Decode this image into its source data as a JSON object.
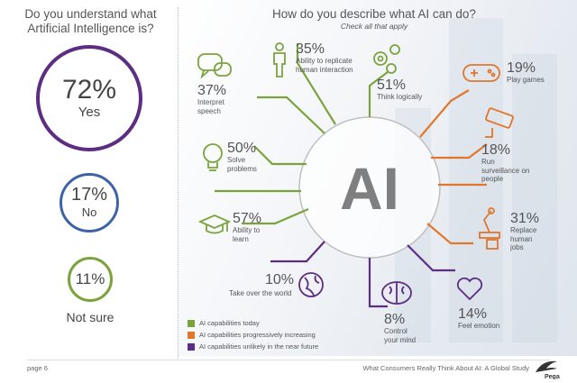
{
  "colors": {
    "green": "#7ba33c",
    "orange": "#e1762d",
    "purple": "#5c2d83",
    "blue": "#3c62a8",
    "grey": "#bfbfbf"
  },
  "left": {
    "title": "Do you understand what Artificial Intelligence is?",
    "answers": [
      {
        "pct": "72%",
        "label": "Yes",
        "color": "purple"
      },
      {
        "pct": "17%",
        "label": "No",
        "color": "blue"
      },
      {
        "pct": "11%",
        "label": "Not sure",
        "color": "green"
      }
    ]
  },
  "right": {
    "title": "How do you describe what AI can do?",
    "subtitle": "Check all that apply",
    "center_label": "AI"
  },
  "items": [
    {
      "pct": "35%",
      "label": "Ability to replicate human interaction",
      "category": "today",
      "icon": "person-icon"
    },
    {
      "pct": "51%",
      "label": "Think logically",
      "category": "today",
      "icon": "gears-icon"
    },
    {
      "pct": "37%",
      "label": "Interpret speech",
      "category": "today",
      "icon": "speech-bubbles-icon"
    },
    {
      "pct": "50%",
      "label": "Solve problems",
      "category": "today",
      "icon": "lightbulb-icon"
    },
    {
      "pct": "57%",
      "label": "Ability to learn",
      "category": "today",
      "icon": "graduation-cap-icon"
    },
    {
      "pct": "19%",
      "label": "Play games",
      "category": "increasing",
      "icon": "gamepad-icon"
    },
    {
      "pct": "18%",
      "label": "Run surveillance on people",
      "category": "increasing",
      "icon": "camera-icon"
    },
    {
      "pct": "31%",
      "label": "Replace human jobs",
      "category": "increasing",
      "icon": "robot-arm-icon"
    },
    {
      "pct": "10%",
      "label": "Take over the world",
      "category": "unlikely",
      "icon": "globe-icon"
    },
    {
      "pct": "8%",
      "label": "Control your mind",
      "category": "unlikely",
      "icon": "brain-icon"
    },
    {
      "pct": "14%",
      "label": "Feel emotion",
      "category": "unlikely",
      "icon": "heart-icon"
    }
  ],
  "legend": [
    {
      "label": "AI capabilities today",
      "color": "green"
    },
    {
      "label": "AI capabilities progressively increasing",
      "color": "orange"
    },
    {
      "label": "AI capabilities unlikely in the near future",
      "color": "purple"
    }
  ],
  "footer": {
    "page": "page 6",
    "study": "What Consumers Really Think About AI: A Global Study",
    "logo": "Pega"
  },
  "chart_data": [
    {
      "type": "table",
      "title": "Do you understand what Artificial Intelligence is?",
      "categories": [
        "Yes",
        "No",
        "Not sure"
      ],
      "values": [
        72,
        17,
        11
      ]
    },
    {
      "type": "table",
      "title": "How do you describe what AI can do?",
      "subtitle": "Check all that apply",
      "categories": [
        "Ability to replicate human interaction",
        "Think logically",
        "Interpret speech",
        "Solve problems",
        "Ability to learn",
        "Play games",
        "Run surveillance on people",
        "Replace human jobs",
        "Take over the world",
        "Control your mind",
        "Feel emotion"
      ],
      "values": [
        35,
        51,
        37,
        50,
        57,
        19,
        18,
        31,
        10,
        8,
        14
      ],
      "groups": [
        {
          "name": "AI capabilities today",
          "categories": [
            "Ability to replicate human interaction",
            "Think logically",
            "Interpret speech",
            "Solve problems",
            "Ability to learn"
          ]
        },
        {
          "name": "AI capabilities progressively increasing",
          "categories": [
            "Play games",
            "Run surveillance on people",
            "Replace human jobs"
          ]
        },
        {
          "name": "AI capabilities unlikely in the near future",
          "categories": [
            "Take over the world",
            "Control your mind",
            "Feel emotion"
          ]
        }
      ]
    }
  ]
}
